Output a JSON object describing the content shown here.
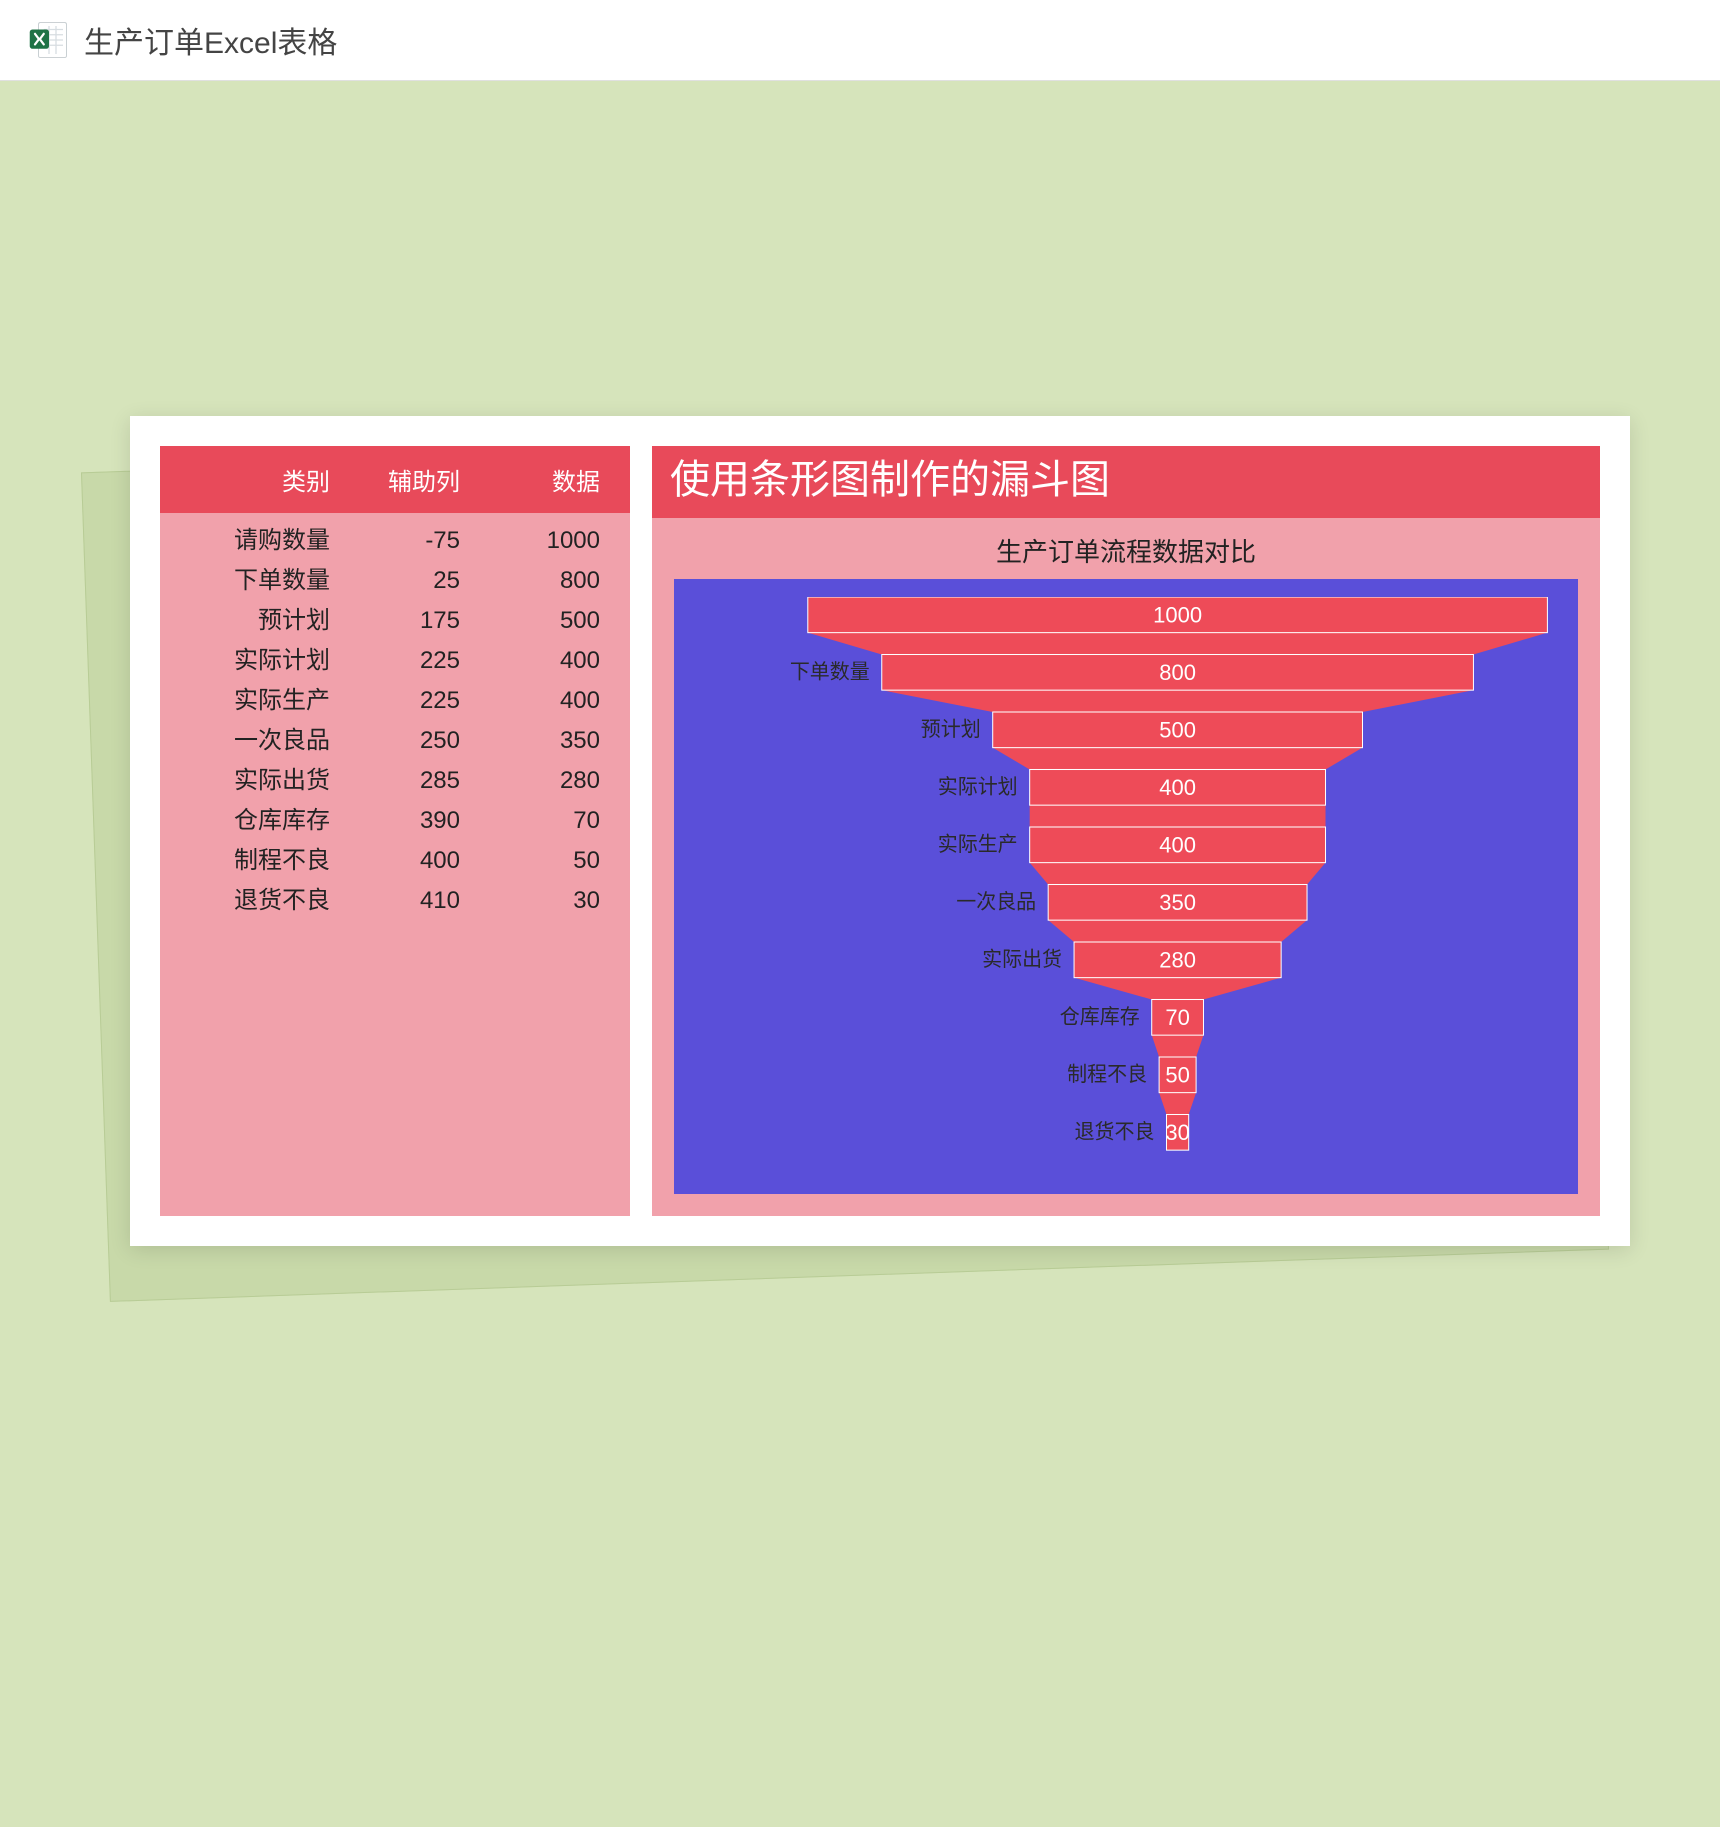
{
  "header": {
    "title": "生产订单Excel表格"
  },
  "table": {
    "columns": {
      "category": "类别",
      "aux": "辅助列",
      "data": "数据"
    },
    "rows": [
      {
        "category": "请购数量",
        "aux": -75,
        "data": 1000
      },
      {
        "category": "下单数量",
        "aux": 25,
        "data": 800
      },
      {
        "category": "预计划",
        "aux": 175,
        "data": 500
      },
      {
        "category": "实际计划",
        "aux": 225,
        "data": 400
      },
      {
        "category": "实际生产",
        "aux": 225,
        "data": 400
      },
      {
        "category": "一次良品",
        "aux": 250,
        "data": 350
      },
      {
        "category": "实际出货",
        "aux": 285,
        "data": 280
      },
      {
        "category": "仓库库存",
        "aux": 390,
        "data": 70
      },
      {
        "category": "制程不良",
        "aux": 400,
        "data": 50
      },
      {
        "category": "退货不良",
        "aux": 410,
        "data": 30
      }
    ]
  },
  "chart": {
    "type": "funnel",
    "title": "使用条形图制作的漏斗图",
    "subtitle": "生产订单流程数据对比",
    "plot_background": "#5a4fd9",
    "bar_color": "#ee4b58",
    "bar_border_color": "#ffffff",
    "bar_label_color": "#ffffff",
    "axis_label_color": "#2a2a2a",
    "connector_color": "#ee4b58",
    "max_value": 1000,
    "bar_label_fontsize": 22,
    "axis_label_fontsize": 20,
    "series": [
      {
        "label": "请购数量",
        "show_axis_label": false,
        "value": 1000
      },
      {
        "label": "下单数量",
        "show_axis_label": true,
        "value": 800
      },
      {
        "label": "预计划",
        "show_axis_label": true,
        "value": 500
      },
      {
        "label": "实际计划",
        "show_axis_label": true,
        "value": 400
      },
      {
        "label": "实际生产",
        "show_axis_label": true,
        "value": 400
      },
      {
        "label": "一次良品",
        "show_axis_label": true,
        "value": 350
      },
      {
        "label": "实际出货",
        "show_axis_label": true,
        "value": 280
      },
      {
        "label": "仓库库存",
        "show_axis_label": true,
        "value": 70
      },
      {
        "label": "制程不良",
        "show_axis_label": true,
        "value": 50
      },
      {
        "label": "退货不良",
        "show_axis_label": true,
        "value": 30
      }
    ]
  },
  "colors": {
    "page_bg": "#d6e4bb",
    "card_bg": "#ffffff",
    "shadow_card_bg": "#c8d9a9",
    "panel_bg": "#f1a1ab",
    "header_bg": "#e84a5a"
  }
}
